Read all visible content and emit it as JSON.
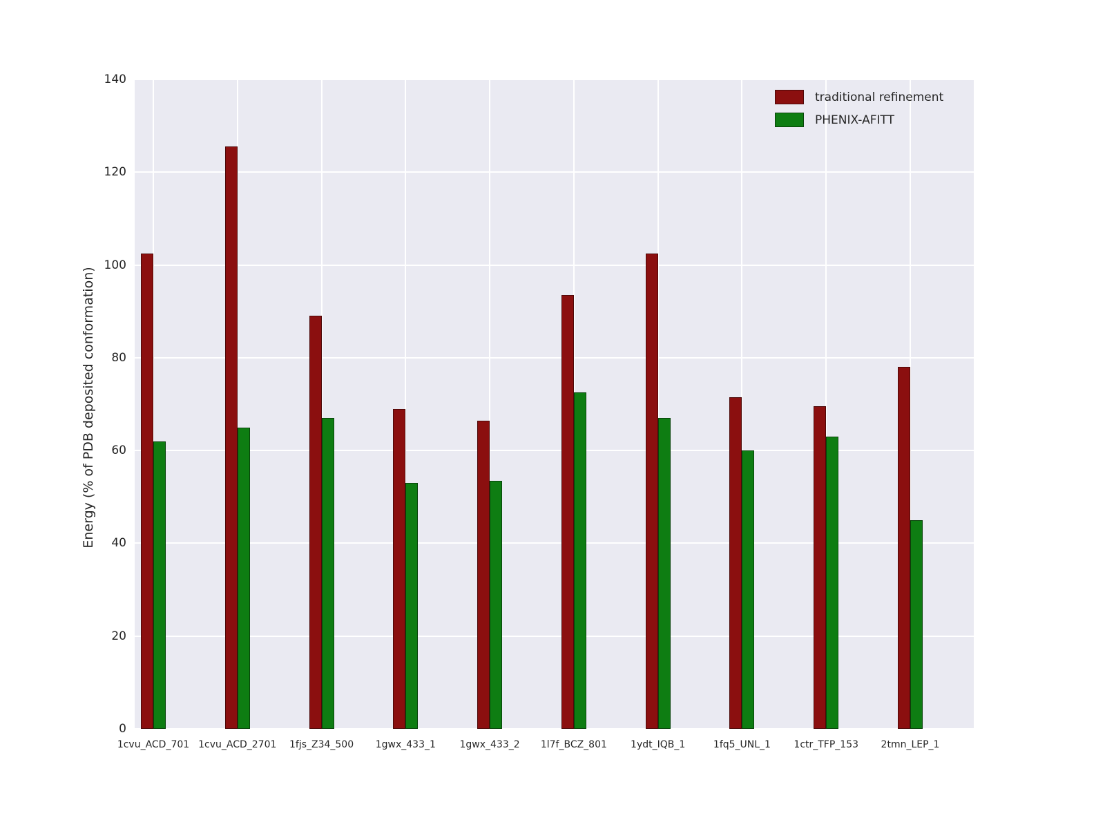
{
  "figure": {
    "background": "#ffffff",
    "plot_background": "#eaeaf2",
    "grid_color": "#ffffff",
    "text_color": "#262626"
  },
  "chart_data": {
    "type": "bar",
    "title": "",
    "xlabel": "",
    "ylabel": "Energy (% of PDB deposited conformation)",
    "ylim": [
      0,
      140
    ],
    "yticks": [
      0,
      20,
      40,
      60,
      80,
      100,
      120,
      140
    ],
    "grid": true,
    "legend_position": "upper right",
    "categories": [
      "1cvu_ACD_701",
      "1cvu_ACD_2701",
      "1fjs_Z34_500",
      "1gwx_433_1",
      "1gwx_433_2",
      "1l7f_BCZ_801",
      "1ydt_IQB_1",
      "1fq5_UNL_1",
      "1ctr_TFP_153",
      "2tmn_LEP_1"
    ],
    "series": [
      {
        "name": "traditional refinement",
        "color": "#8b0f0f",
        "values": [
          102.5,
          125.5,
          89,
          69,
          66.5,
          93.5,
          102.5,
          71.5,
          69.5,
          78
        ]
      },
      {
        "name": "PHENIX-AFITT",
        "color": "#0e7d12",
        "values": [
          62,
          65,
          67,
          53,
          53.5,
          72.5,
          67,
          60,
          63,
          45
        ]
      }
    ]
  }
}
